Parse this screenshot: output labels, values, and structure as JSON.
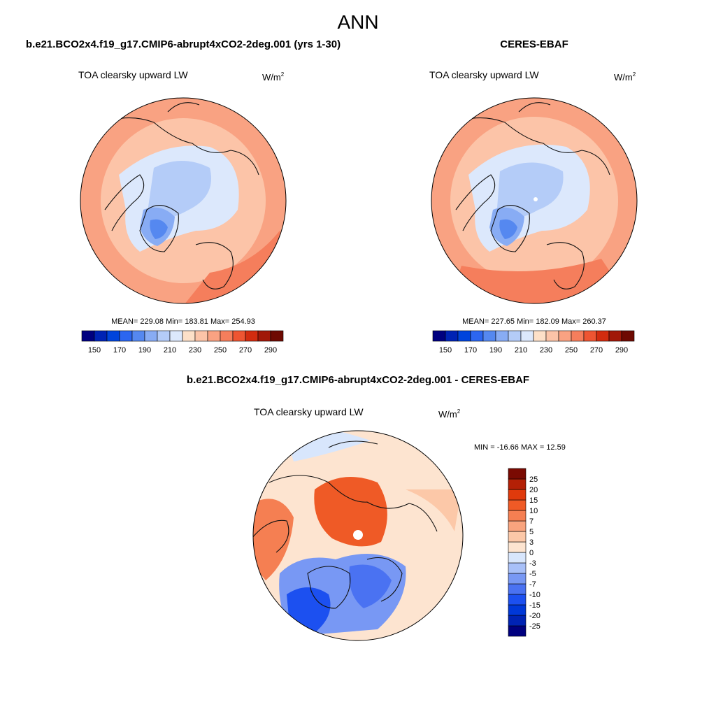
{
  "figure": {
    "title": "ANN",
    "diff_title": "b.e21.BCO2x4.f19_g17.CMIP6-abrupt4xCO2-2deg.001 - CERES-EBAF",
    "colors": {
      "land_outline": "#111111",
      "background": "#ffffff"
    }
  },
  "chart_data": [
    {
      "type": "heatmap",
      "projection": "north-polar-stereographic",
      "title": "b.e21.BCO2x4.f19_g17.CMIP6-abrupt4xCO2-2deg.001 (yrs 1-30)",
      "variable": "TOA clearsky upward LW",
      "units": "W/m",
      "units_sup": "2",
      "stats": {
        "mean": "229.08",
        "min": "183.81",
        "max": "254.93"
      },
      "stats_text": "MEAN= 229.08  Min= 183.81  Max= 254.93",
      "colorbar": {
        "orientation": "horizontal",
        "levels": [
          150,
          160,
          170,
          180,
          190,
          200,
          210,
          220,
          230,
          240,
          250,
          260,
          270,
          280,
          290
        ],
        "tick_labels": [
          "150",
          "170",
          "190",
          "210",
          "230",
          "250",
          "270",
          "290"
        ],
        "colors": [
          "#00007f",
          "#0023b4",
          "#0044dc",
          "#2c66f0",
          "#5588f0",
          "#88acf4",
          "#b4ccf8",
          "#dce8fc",
          "#fde0c8",
          "#fcc4a8",
          "#f9a282",
          "#f57e5c",
          "#ee5532",
          "#d22c0f",
          "#a11808",
          "#6e0a02"
        ]
      }
    },
    {
      "type": "heatmap",
      "projection": "north-polar-stereographic",
      "title": "CERES-EBAF",
      "variable": "TOA clearsky upward LW",
      "units": "W/m",
      "units_sup": "2",
      "stats": {
        "mean": "227.65",
        "min": "182.09",
        "max": "260.37"
      },
      "stats_text": "MEAN= 227.65  Min= 182.09  Max= 260.37",
      "colorbar": {
        "orientation": "horizontal",
        "levels": [
          150,
          160,
          170,
          180,
          190,
          200,
          210,
          220,
          230,
          240,
          250,
          260,
          270,
          280,
          290
        ],
        "tick_labels": [
          "150",
          "170",
          "190",
          "210",
          "230",
          "250",
          "270",
          "290"
        ],
        "colors": [
          "#00007f",
          "#0023b4",
          "#0044dc",
          "#2c66f0",
          "#5588f0",
          "#88acf4",
          "#b4ccf8",
          "#dce8fc",
          "#fde0c8",
          "#fcc4a8",
          "#f9a282",
          "#f57e5c",
          "#ee5532",
          "#d22c0f",
          "#a11808",
          "#6e0a02"
        ]
      }
    },
    {
      "type": "heatmap",
      "projection": "north-polar-stereographic",
      "title": "b.e21.BCO2x4.f19_g17.CMIP6-abrupt4xCO2-2deg.001 - CERES-EBAF",
      "variable": "TOA clearsky upward LW",
      "units": "W/m",
      "units_sup": "2",
      "stats": {
        "min": "-16.66",
        "max": "12.59"
      },
      "stats_text": "MIN = -16.66 MAX =  12.59",
      "colorbar": {
        "orientation": "vertical",
        "levels": [
          -25,
          -20,
          -15,
          -10,
          -7,
          -5,
          -3,
          0,
          3,
          5,
          7,
          10,
          15,
          20,
          25
        ],
        "tick_labels": [
          "25",
          "20",
          "15",
          "10",
          "7",
          "5",
          "3",
          "0",
          "-3",
          "-5",
          "-7",
          "-10",
          "-15",
          "-20",
          "-25"
        ],
        "colors": [
          "#00007f",
          "#0023b4",
          "#0038d8",
          "#1c50f0",
          "#4a72f2",
          "#7898f4",
          "#a8c0f8",
          "#d8e6fc",
          "#fde4d0",
          "#fcc8a8",
          "#f9a47e",
          "#f57f52",
          "#ef5a26",
          "#e03a0c",
          "#b42006",
          "#7a0a02"
        ]
      }
    }
  ]
}
